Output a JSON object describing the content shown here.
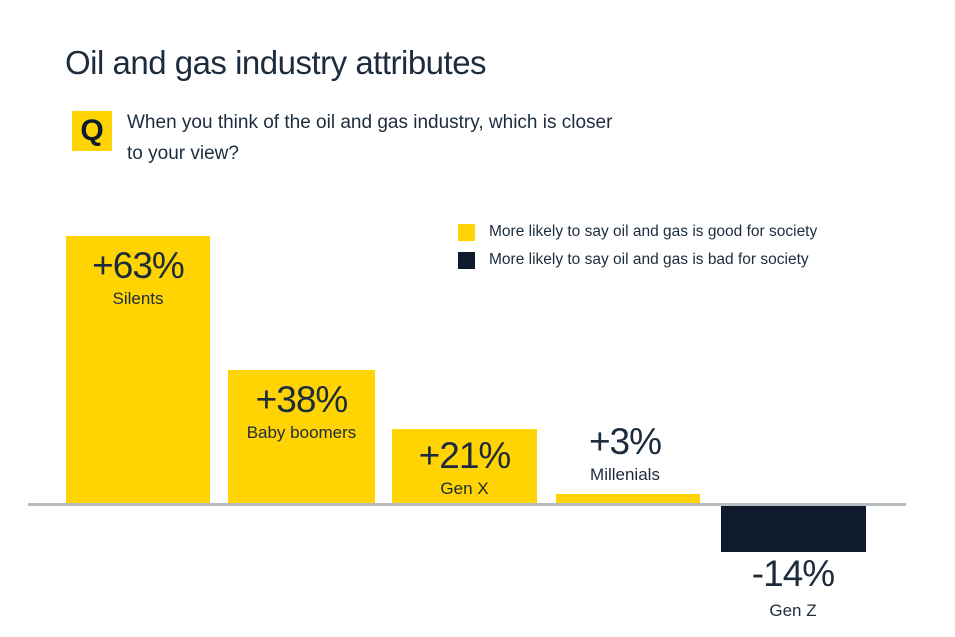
{
  "title": "Oil and gas industry attributes",
  "question": {
    "badge": "Q",
    "text_line1": "When you think of the oil and gas industry, which is closer",
    "text_line2": "to your view?"
  },
  "legend": {
    "position": "top-right",
    "items": [
      {
        "label": "More likely to say oil and gas is good for society",
        "color": "#ffd402"
      },
      {
        "label": "More likely to say oil and gas is bad for society",
        "color": "#0f1b2c"
      }
    ]
  },
  "chart_data": {
    "type": "bar",
    "title": "Oil and gas industry attributes",
    "categories": [
      "Silents",
      "Baby boomers",
      "Gen X",
      "Millenials",
      "Gen Z"
    ],
    "values": [
      63,
      38,
      21,
      3,
      -14
    ],
    "value_labels": [
      "+63%",
      "+38%",
      "+21%",
      "+3%",
      "-14%"
    ],
    "positive_color": "#ffd402",
    "negative_color": "#0f1b2c",
    "baseline": 0,
    "ylim": [
      -20,
      70
    ],
    "grid": false,
    "legend_position": "top-right",
    "legend_entries": [
      "More likely to say oil and gas is good for society",
      "More likely to say oil and gas is bad for society"
    ]
  },
  "colors": {
    "accent_yellow": "#ffd402",
    "dark_navy": "#0f1b2c",
    "text": "#1d2c3d",
    "baseline_gray": "#b6bcc2",
    "background": "#ffffff"
  }
}
